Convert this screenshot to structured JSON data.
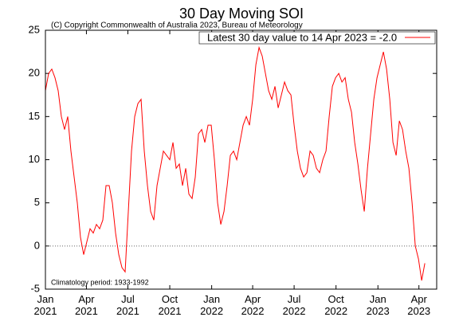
{
  "chart_data": {
    "type": "line",
    "title": "30 Day Moving SOI",
    "subtitle": "(C) Copyright Commonwealth of Australia 2023, Bureau of Meteorology",
    "annotation": "Climatology period: 1933-1992",
    "x": [
      "2021-01-01",
      "2021-01-08",
      "2021-01-15",
      "2021-01-22",
      "2021-01-29",
      "2021-02-05",
      "2021-02-12",
      "2021-02-19",
      "2021-02-26",
      "2021-03-05",
      "2021-03-12",
      "2021-03-19",
      "2021-03-26",
      "2021-04-02",
      "2021-04-09",
      "2021-04-16",
      "2021-04-23",
      "2021-04-30",
      "2021-05-07",
      "2021-05-14",
      "2021-05-21",
      "2021-05-28",
      "2021-06-04",
      "2021-06-11",
      "2021-06-18",
      "2021-06-25",
      "2021-07-02",
      "2021-07-09",
      "2021-07-16",
      "2021-07-23",
      "2021-07-30",
      "2021-08-06",
      "2021-08-13",
      "2021-08-20",
      "2021-08-27",
      "2021-09-03",
      "2021-09-10",
      "2021-09-17",
      "2021-09-24",
      "2021-10-01",
      "2021-10-08",
      "2021-10-15",
      "2021-10-22",
      "2021-10-29",
      "2021-11-05",
      "2021-11-12",
      "2021-11-19",
      "2021-11-26",
      "2021-12-03",
      "2021-12-10",
      "2021-12-17",
      "2021-12-24",
      "2021-12-31",
      "2022-01-07",
      "2022-01-14",
      "2022-01-21",
      "2022-01-28",
      "2022-02-04",
      "2022-02-11",
      "2022-02-18",
      "2022-02-25",
      "2022-03-04",
      "2022-03-11",
      "2022-03-18",
      "2022-03-25",
      "2022-04-01",
      "2022-04-08",
      "2022-04-15",
      "2022-04-22",
      "2022-04-29",
      "2022-05-06",
      "2022-05-13",
      "2022-05-20",
      "2022-05-27",
      "2022-06-03",
      "2022-06-10",
      "2022-06-17",
      "2022-06-24",
      "2022-07-01",
      "2022-07-08",
      "2022-07-15",
      "2022-07-22",
      "2022-07-29",
      "2022-08-05",
      "2022-08-12",
      "2022-08-19",
      "2022-08-26",
      "2022-09-02",
      "2022-09-09",
      "2022-09-16",
      "2022-09-23",
      "2022-09-30",
      "2022-10-07",
      "2022-10-14",
      "2022-10-21",
      "2022-10-28",
      "2022-11-04",
      "2022-11-11",
      "2022-11-18",
      "2022-11-25",
      "2022-12-02",
      "2022-12-09",
      "2022-12-16",
      "2022-12-23",
      "2022-12-30",
      "2023-01-06",
      "2023-01-13",
      "2023-01-20",
      "2023-01-27",
      "2023-02-03",
      "2023-02-10",
      "2023-02-17",
      "2023-02-24",
      "2023-03-03",
      "2023-03-10",
      "2023-03-17",
      "2023-03-24",
      "2023-03-31",
      "2023-04-07",
      "2023-04-14"
    ],
    "series": [
      {
        "name": "Latest 30 day value to 14 Apr 2023 = -2.0",
        "color": "#ff0000",
        "values": [
          18,
          20,
          20.5,
          19.5,
          18,
          15,
          13.5,
          15,
          11,
          8,
          5,
          1,
          -1,
          0.5,
          2,
          1.5,
          2.5,
          2,
          3,
          7,
          7,
          5,
          1.5,
          -1,
          -2.5,
          -3,
          4,
          11,
          15,
          16.5,
          17,
          11,
          7,
          4,
          3,
          7,
          9,
          11,
          10.5,
          10,
          12,
          9,
          9.5,
          7,
          9,
          6,
          5.5,
          8,
          13,
          13.5,
          12,
          14,
          14,
          10,
          5,
          2.5,
          4,
          7,
          10.5,
          11,
          10,
          12,
          14,
          15,
          14,
          17,
          21,
          23,
          22,
          20,
          18,
          17,
          18.5,
          16,
          17.5,
          19,
          18,
          17.5,
          14,
          11,
          9,
          8,
          8.5,
          11,
          10.5,
          9,
          8.5,
          10,
          11,
          15,
          18.5,
          19.5,
          20,
          19,
          19.5,
          17,
          15.5,
          12,
          9.5,
          6.5,
          4,
          9,
          13,
          17,
          19.5,
          21,
          22.5,
          20.5,
          17,
          12,
          10.5,
          14.5,
          13.5,
          11,
          9,
          5,
          0,
          -1.5,
          -4,
          -2
        ]
      }
    ],
    "xlim": [
      "2021-01-01",
      "2023-05-10"
    ],
    "xticks": [
      {
        "value": "2021-01-01",
        "label": "Jan 2021"
      },
      {
        "value": "2021-04-01",
        "label": "Apr 2021"
      },
      {
        "value": "2021-07-01",
        "label": "Jul 2021"
      },
      {
        "value": "2021-10-01",
        "label": "Oct 2021"
      },
      {
        "value": "2022-01-01",
        "label": "Jan 2022"
      },
      {
        "value": "2022-04-01",
        "label": "Apr 2022"
      },
      {
        "value": "2022-07-01",
        "label": "Jul 2022"
      },
      {
        "value": "2022-10-01",
        "label": "Oct 2022"
      },
      {
        "value": "2023-01-01",
        "label": "Jan 2023"
      },
      {
        "value": "2023-04-01",
        "label": "Apr 2023"
      }
    ],
    "ylim": [
      -5,
      25
    ],
    "yticks": [
      -5,
      0,
      5,
      10,
      15,
      20,
      25
    ],
    "zero_line": true,
    "legend": "top-right"
  }
}
